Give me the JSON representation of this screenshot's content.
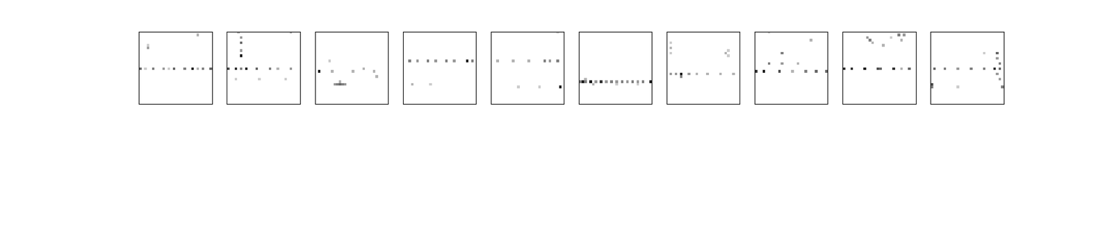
{
  "chart_data": [
    {
      "type": "image",
      "tick_labels": false,
      "rows": 28,
      "cols": 28,
      "color_range": [
        0,
        1
      ],
      "cells": [
        [
          14,
          0,
          0.6
        ],
        [
          14,
          5,
          0.5
        ],
        [
          14,
          9,
          0.4
        ],
        [
          14,
          13,
          0.6
        ],
        [
          14,
          17,
          0.5
        ],
        [
          14,
          20,
          0.9
        ],
        [
          14,
          24,
          0.5
        ],
        [
          14,
          27,
          0.6
        ],
        [
          14,
          2,
          0.2
        ],
        [
          14,
          11,
          0.2
        ],
        [
          14,
          22,
          0.3
        ],
        [
          6,
          3,
          0.4
        ],
        [
          5,
          3,
          0.2
        ],
        [
          1,
          22,
          0.3
        ]
      ]
    },
    {
      "type": "image",
      "tick_labels": false,
      "rows": 28,
      "cols": 28,
      "color_range": [
        0,
        1
      ],
      "cells": [
        [
          14,
          0,
          0.7
        ],
        [
          14,
          3,
          0.8
        ],
        [
          14,
          7,
          0.9
        ],
        [
          14,
          11,
          0.6
        ],
        [
          14,
          16,
          0.5
        ],
        [
          14,
          24,
          0.4
        ],
        [
          14,
          5,
          0.5
        ],
        [
          14,
          19,
          0.3
        ],
        [
          9,
          5,
          0.9
        ],
        [
          4,
          5,
          0.6
        ],
        [
          2,
          5,
          0.4
        ],
        [
          7,
          5,
          0.4
        ],
        [
          0,
          4,
          0.3
        ],
        [
          0,
          24,
          0.3
        ],
        [
          18,
          3,
          0.2
        ],
        [
          18,
          12,
          0.2
        ],
        [
          18,
          22,
          0.2
        ]
      ]
    },
    {
      "type": "image",
      "tick_labels": false,
      "rows": 28,
      "cols": 28,
      "color_range": [
        0,
        1
      ],
      "cells": [
        [
          15,
          1,
          0.9
        ],
        [
          15,
          6,
          0.3
        ],
        [
          15,
          14,
          0.3
        ],
        [
          15,
          22,
          0.3
        ],
        [
          14,
          18,
          0.3
        ],
        [
          20,
          7,
          0.4
        ],
        [
          20,
          8,
          0.5
        ],
        [
          20,
          9,
          0.6
        ],
        [
          20,
          10,
          0.5
        ],
        [
          20,
          11,
          0.4
        ],
        [
          19,
          9,
          0.3
        ],
        [
          17,
          23,
          0.3
        ],
        [
          11,
          5,
          0.2
        ]
      ]
    },
    {
      "type": "image",
      "tick_labels": false,
      "rows": 28,
      "cols": 28,
      "color_range": [
        0,
        1
      ],
      "cells": [
        [
          11,
          2,
          0.5
        ],
        [
          11,
          5,
          0.4
        ],
        [
          11,
          9,
          0.5
        ],
        [
          11,
          12,
          0.4
        ],
        [
          11,
          16,
          0.5
        ],
        [
          11,
          19,
          0.4
        ],
        [
          11,
          24,
          0.9
        ],
        [
          11,
          26,
          0.5
        ],
        [
          20,
          3,
          0.3
        ],
        [
          20,
          10,
          0.2
        ]
      ]
    },
    {
      "type": "image",
      "tick_labels": false,
      "rows": 28,
      "cols": 28,
      "color_range": [
        0,
        1
      ],
      "cells": [
        [
          11,
          2,
          0.3
        ],
        [
          11,
          8,
          0.3
        ],
        [
          11,
          14,
          0.3
        ],
        [
          11,
          20,
          0.5
        ],
        [
          11,
          22,
          0.4
        ],
        [
          11,
          25,
          0.5
        ],
        [
          21,
          26,
          0.9
        ],
        [
          21,
          10,
          0.2
        ],
        [
          21,
          18,
          0.2
        ],
        [
          0,
          25,
          0.2
        ]
      ]
    },
    {
      "type": "image",
      "tick_labels": false,
      "rows": 28,
      "cols": 28,
      "color_range": [
        0,
        1
      ],
      "cells": [
        [
          19,
          0,
          0.5
        ],
        [
          19,
          1,
          0.9
        ],
        [
          19,
          2,
          0.5
        ],
        [
          19,
          4,
          0.9
        ],
        [
          19,
          6,
          0.4
        ],
        [
          19,
          8,
          0.8
        ],
        [
          19,
          10,
          0.4
        ],
        [
          19,
          12,
          0.5
        ],
        [
          19,
          14,
          0.4
        ],
        [
          19,
          16,
          0.5
        ],
        [
          19,
          18,
          0.4
        ],
        [
          19,
          20,
          0.5
        ],
        [
          19,
          22,
          0.4
        ],
        [
          19,
          24,
          0.5
        ],
        [
          19,
          27,
          0.9
        ],
        [
          18,
          2,
          0.3
        ],
        [
          20,
          5,
          0.3
        ],
        [
          20,
          14,
          0.2
        ],
        [
          20,
          22,
          0.2
        ]
      ]
    },
    {
      "type": "image",
      "tick_labels": false,
      "rows": 28,
      "cols": 28,
      "color_range": [
        0,
        1
      ],
      "cells": [
        [
          16,
          1,
          0.4
        ],
        [
          16,
          3,
          0.4
        ],
        [
          16,
          5,
          0.95
        ],
        [
          16,
          8,
          0.4
        ],
        [
          16,
          11,
          0.3
        ],
        [
          16,
          15,
          0.3
        ],
        [
          16,
          20,
          0.3
        ],
        [
          16,
          25,
          0.3
        ],
        [
          17,
          5,
          0.5
        ],
        [
          4,
          1,
          0.2
        ],
        [
          6,
          1,
          0.3
        ],
        [
          8,
          1,
          0.2
        ],
        [
          8,
          22,
          0.3
        ],
        [
          7,
          23,
          0.2
        ],
        [
          9,
          23,
          0.2
        ]
      ]
    },
    {
      "type": "image",
      "tick_labels": false,
      "rows": 28,
      "cols": 28,
      "color_range": [
        0,
        1
      ],
      "cells": [
        [
          15,
          0,
          0.8
        ],
        [
          15,
          3,
          0.9
        ],
        [
          15,
          9,
          0.7
        ],
        [
          15,
          19,
          0.5
        ],
        [
          15,
          23,
          0.6
        ],
        [
          15,
          27,
          0.6
        ],
        [
          15,
          14,
          0.3
        ],
        [
          12,
          5,
          0.5
        ],
        [
          12,
          10,
          0.4
        ],
        [
          12,
          16,
          0.3
        ],
        [
          8,
          10,
          0.5
        ],
        [
          3,
          21,
          0.3
        ],
        [
          0,
          5,
          0.2
        ]
      ]
    },
    {
      "type": "image",
      "tick_labels": false,
      "rows": 28,
      "cols": 28,
      "color_range": [
        0,
        1
      ],
      "cells": [
        [
          14,
          0,
          0.8
        ],
        [
          14,
          3,
          0.8
        ],
        [
          14,
          8,
          0.9
        ],
        [
          14,
          13,
          0.7
        ],
        [
          14,
          14,
          0.6
        ],
        [
          14,
          19,
          0.8
        ],
        [
          14,
          25,
          0.6
        ],
        [
          14,
          22,
          0.3
        ],
        [
          2,
          9,
          0.4
        ],
        [
          3,
          10,
          0.5
        ],
        [
          4,
          11,
          0.3
        ],
        [
          1,
          21,
          0.5
        ],
        [
          1,
          23,
          0.4
        ],
        [
          3,
          22,
          0.3
        ],
        [
          5,
          15,
          0.3
        ],
        [
          2,
          18,
          0.2
        ]
      ]
    },
    {
      "type": "image",
      "tick_labels": false,
      "rows": 28,
      "cols": 28,
      "color_range": [
        0,
        1
      ],
      "cells": [
        [
          14,
          1,
          0.6
        ],
        [
          14,
          5,
          0.5
        ],
        [
          14,
          10,
          0.4
        ],
        [
          14,
          15,
          0.5
        ],
        [
          14,
          20,
          0.5
        ],
        [
          14,
          24,
          0.8
        ],
        [
          14,
          26,
          0.6
        ],
        [
          8,
          25,
          0.6
        ],
        [
          10,
          25,
          0.4
        ],
        [
          12,
          26,
          0.5
        ],
        [
          16,
          25,
          0.4
        ],
        [
          18,
          26,
          0.4
        ],
        [
          20,
          0,
          0.7
        ],
        [
          21,
          0,
          0.5
        ],
        [
          21,
          10,
          0.2
        ],
        [
          21,
          27,
          0.5
        ],
        [
          8,
          20,
          0.2
        ]
      ]
    }
  ]
}
